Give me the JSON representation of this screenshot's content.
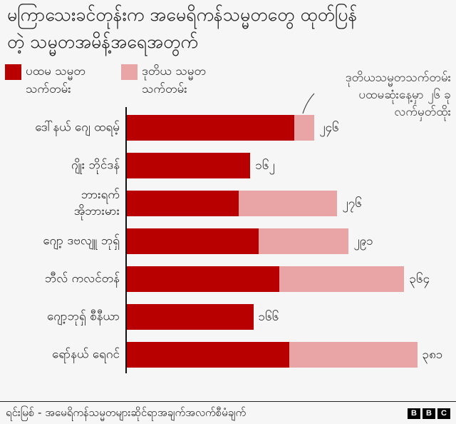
{
  "title": {
    "line1": "မကြာသေးခင်တုန်းက အမေရိကန်သမ္မတတွေ ထုတ်ပြန်",
    "line2": "တဲ့ သမ္မတအမိန့်အရေအတွက်"
  },
  "legend": [
    {
      "label": "ပထမ သမ္မတ\nသက်တမ်း",
      "color": "#b80000"
    },
    {
      "label": "ဒုတိယ သမ္မတ\nသက်တမ်း",
      "color": "#e9a4a6"
    }
  ],
  "annotation": {
    "lines": [
      "ဒုတိယသမ္မတသက်တမ်း",
      "ပထမဆုံးနေ့မှာ ၂၆ ခု",
      "လက်မှတ်ထိုး"
    ]
  },
  "chart_data": {
    "type": "bar",
    "orientation": "horizontal",
    "stacked": true,
    "title": "မကြာသေးခင်တုန်းက အမေရိကန်သမ္မတတွေ ထုတ်ပြန်တဲ့ သမ္မတအမိန့်အရေအတွက်",
    "categories": [
      "ဒေါ်နယ် ဂျေ ထရမ့်",
      "ဂျိုး ဘိုင်ဒန်",
      "ဘားရက်\nအိုဘားမား",
      "ဂျော့ ဒဗလျူ ဘုရှ်",
      "ဘီလ် ကလင်တန်",
      "ဂျော့ဘုရှ် စီနီယာ",
      "ရော်နယ် ရေဂင်"
    ],
    "series": [
      {
        "name": "ပထမ သမ္မတ သက်တမ်း",
        "color": "#b80000",
        "values": [
          220,
          162,
          147,
          173,
          200,
          166,
          213
        ]
      },
      {
        "name": "ဒုတိယ သမ္မတ သက်တမ်း",
        "color": "#e9a4a6",
        "values": [
          26,
          0,
          129,
          118,
          164,
          0,
          168
        ]
      }
    ],
    "totals": [
      246,
      162,
      276,
      291,
      364,
      166,
      381
    ],
    "total_labels": [
      "၂၄၆",
      "၁၆၂",
      "၂၇၆",
      "၂၉၁",
      "၃၆၄",
      "၁၆၆",
      "၃၈၁"
    ],
    "annotation": "ဒုတိယသမ္မတသက်တမ်း ပထမဆုံးနေ့မှာ ၂၆ ခု လက်မှတ်ထိုး",
    "xlabel": "",
    "ylabel": "",
    "xlim": [
      0,
      400
    ],
    "grid": false,
    "legend_position": "top-left"
  },
  "footer": {
    "source": "ရင်းမြစ် - အမေရိကန်သမ္မတများဆိုင်ရာအချက်အလက်စီမံချက်",
    "logo_letters": [
      "B",
      "B",
      "C"
    ]
  }
}
